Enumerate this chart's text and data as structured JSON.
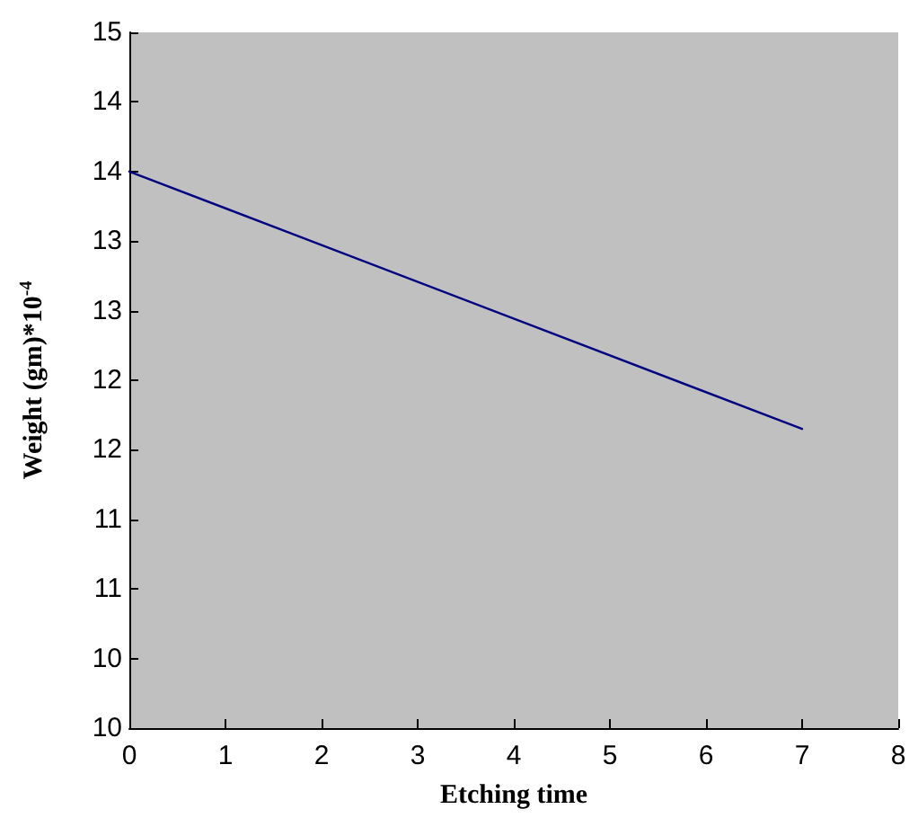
{
  "chart_data": {
    "type": "line",
    "xlabel": "Etching time",
    "ylabel": "Weight (gm)*10$^{-4}$",
    "series": [
      {
        "x": [
          0,
          7
        ],
        "values": [
          14.0,
          12.15
        ],
        "color": "#000080"
      }
    ],
    "xlim": [
      0,
      8
    ],
    "xticks": [
      0,
      1,
      2,
      3,
      4,
      5,
      6,
      7,
      8
    ],
    "ylim": [
      10,
      15
    ],
    "yticks": [
      10,
      {
        "value": 10.5,
        "label": "10"
      },
      11,
      {
        "value": 11.5,
        "label": "11"
      },
      12,
      {
        "value": 12.5,
        "label": "12"
      },
      13,
      {
        "value": 13.5,
        "label": "13"
      },
      14,
      {
        "value": 14.5,
        "label": "14"
      },
      15
    ],
    "grid": false,
    "marker": "none",
    "line_style": "solid"
  }
}
